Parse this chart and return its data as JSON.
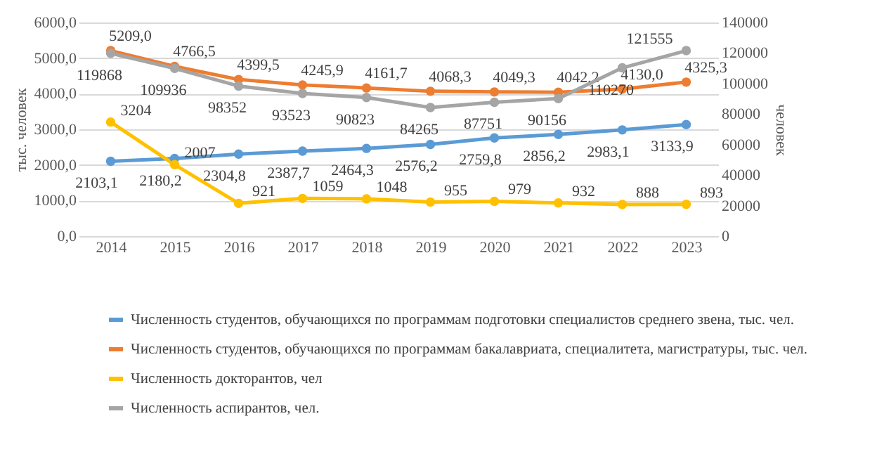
{
  "chart_data": {
    "type": "line",
    "ylabel": "тыс. человек",
    "y2label": "человек",
    "categories": [
      "2014",
      "2015",
      "2016",
      "2017",
      "2018",
      "2019",
      "2020",
      "2021",
      "2022",
      "2023"
    ],
    "series": [
      {
        "name": "Численность  студентов, обучающихся по программам подготовки специалистов  среднего звена, тыс. чел.",
        "color": "#5b9bd5",
        "values": [
          2103.1,
          2180.2,
          2304.8,
          2387.7,
          2464.3,
          2576.2,
          2759.8,
          2856.2,
          2983.1,
          3133.9
        ],
        "value_labels": [
          "2103,1",
          "2180,2",
          "2304,8",
          "2387,7",
          "2464,3",
          "2576,2",
          "2759,8",
          "2856,2",
          "2983,1",
          "3133,9"
        ]
      },
      {
        "name": "Численность  студентов, обучающихся по программам бакалавриата, специалитета,  магистратуры, тыс. чел.",
        "color": "#ed7d31",
        "values": [
          5209.0,
          4766.5,
          4399.5,
          4245.9,
          4161.7,
          4068.3,
          4049.3,
          4042.2,
          4130.0,
          4325.3
        ],
        "value_labels": [
          "5209,0",
          "4766,5",
          "4399,5",
          "4245,9",
          "4161,7",
          "4068,3",
          "4049,3",
          "4042,2",
          "4130,0",
          "4325,3"
        ]
      },
      {
        "name": "Численность  докторантов, чел",
        "color": "#ffc000",
        "values": [
          3204,
          2007,
          921,
          1059,
          1048,
          955,
          979,
          932,
          888,
          893
        ],
        "value_labels": [
          "3204",
          "2007",
          "921",
          "1059",
          "1048",
          "955",
          "979",
          "932",
          "888",
          "893"
        ]
      },
      {
        "name": "Численность  аспирантов, чел.",
        "color": "#a5a5a5",
        "axis": "y2",
        "values": [
          119868,
          109936,
          98352,
          93523,
          90823,
          84265,
          87751,
          90156,
          110270,
          121555
        ],
        "value_labels": [
          "119868",
          "109936",
          "98352",
          "93523",
          "90823",
          "84265",
          "87751",
          "90156",
          "110270",
          "121555"
        ]
      }
    ],
    "ylim": [
      0,
      6000
    ],
    "yticks": [
      {
        "value": 0,
        "label": "0,0"
      },
      {
        "value": 1000,
        "label": "1000,0"
      },
      {
        "value": 2000,
        "label": "2000,0"
      },
      {
        "value": 3000,
        "label": "3000,0"
      },
      {
        "value": 4000,
        "label": "4000,0"
      },
      {
        "value": 5000,
        "label": "5000,0"
      },
      {
        "value": 6000,
        "label": "6000,0"
      }
    ],
    "y2lim": [
      0,
      140000
    ],
    "y2ticks": [
      0,
      20000,
      40000,
      60000,
      80000,
      100000,
      120000,
      140000
    ],
    "grid": "y",
    "legend": "bottom",
    "marker": "circle",
    "line_style": "solid"
  }
}
